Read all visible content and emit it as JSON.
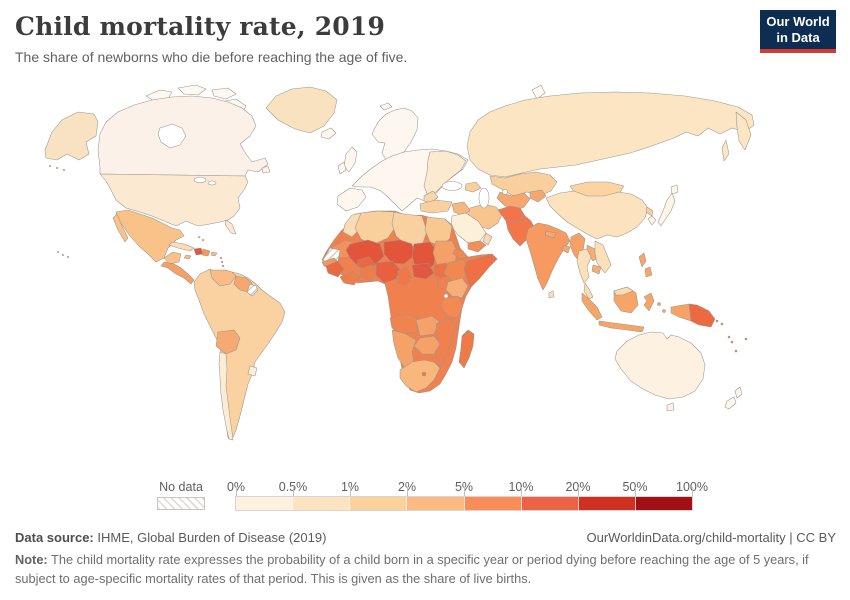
{
  "header": {
    "title": "Child mortality rate, 2019",
    "subtitle": "The share of newborns who die before reaching the age of five."
  },
  "logo": {
    "line1": "Our World",
    "line2": "in Data",
    "navy": "#0d2e52",
    "red": "#d73a33"
  },
  "legend": {
    "no_data_label": "No data",
    "tick_labels": [
      "0%",
      "0.5%",
      "1%",
      "2%",
      "5%",
      "10%",
      "20%",
      "50%",
      "100%"
    ],
    "colors": [
      "#fff1e0",
      "#fde3bf",
      "#fcd29c",
      "#fbba81",
      "#f98c57",
      "#eb6246",
      "#d03022",
      "#a21016"
    ]
  },
  "footer": {
    "source_label": "Data source:",
    "source_text": " IHME, Global Burden of Disease (2019)",
    "link_text": "OurWorldinData.org/child-mortality | CC BY",
    "note_label": "Note:",
    "note_text": " The child mortality rate expresses the probability of a child born in a specific year or period dying before reaching the age of 5 years, if subject to age-specific mortality rates of that period. This is given as the share of live births."
  },
  "chart_data": {
    "type": "choropleth_map",
    "title": "Child mortality rate, 2019",
    "subtitle": "The share of newborns who die before reaching the age of five.",
    "unit": "%",
    "scale": "binned (log-like)",
    "bins": [
      "0%",
      "0.5%",
      "1%",
      "2%",
      "5%",
      "10%",
      "20%",
      "50%",
      "100%"
    ],
    "bin_colors": [
      "#fff1e0",
      "#fde3bf",
      "#fcd29c",
      "#fbba81",
      "#f98c57",
      "#eb6246",
      "#d03022",
      "#a21016"
    ],
    "no_data": {
      "label": "No data",
      "regions": [
        "Western Sahara",
        "French Guiana"
      ]
    },
    "regional_shading_read_from_map": {
      "10-20% (darkest shown)": [
        "Mali",
        "Niger",
        "Chad",
        "Central African Republic",
        "Nigeria",
        "Guinea",
        "Sierra Leone",
        "Haiti"
      ],
      "5-10%": [
        "Most of sub-Saharan Africa",
        "Somalia",
        "Afghanistan",
        "Pakistan",
        "Papua New Guinea",
        "Madagascar",
        "Yemen",
        "Cameroon",
        "Angola",
        "Mozambique"
      ],
      "2-5%": [
        "India",
        "Myanmar",
        "Bolivia",
        "Guatemala/Honduras",
        "Sudan",
        "Ethiopia",
        "Kenya",
        "South Africa",
        "Turkmenistan/Uzbekistan",
        "Indonesia",
        "Philippines",
        "Laos",
        "Senegal",
        "Mauritania"
      ],
      "1-2%": [
        "Mexico",
        "most of South America",
        "North Africa",
        "Iran",
        "Iraq",
        "Turkey",
        "Kazakhstan",
        "Mongolia",
        "Egypt",
        "Dominican Republic"
      ],
      "0.5-1%": [
        "United States",
        "Russia",
        "China",
        "Eastern Europe",
        "Thailand",
        "Vietnam",
        "Saudi Arabia",
        "Chile",
        "Greenland"
      ],
      "<0.5%": [
        "Canada",
        "Western & Northern Europe",
        "Japan",
        "South Korea",
        "Australia",
        "New Zealand"
      ]
    }
  },
  "map": {
    "colors": {
      "ocean": "#ffffff",
      "border": "#9c958f",
      "arctic": "#fdf9f2",
      "canada": "#fcf1e8",
      "alaska": "#f9e2c1",
      "greenland": "#f9e2bf",
      "usa": "#fbe9d2",
      "mexico": "#f9c289",
      "central_america": "#f5a066",
      "cuba": "#fbdcb4",
      "haiti": "#e4583a",
      "dominican_republic": "#f5975f",
      "caribbean": "#f8bc83",
      "south_america": "#fad1a1",
      "venezuela": "#f8bc84",
      "guyana": "#f5a76d",
      "bolivia": "#f5a973",
      "chile": "#fcecd6",
      "uruguay": "#fceedd",
      "europe": "#fdf7ef",
      "eastern_europe": "#fbe9d0",
      "balkans": "#f9d6ab",
      "russia": "#fbe5c2",
      "kazakhstan": "#f8cf9d",
      "central_asia": "#f5a76f",
      "mongolia": "#fbd4a1",
      "china": "#fce3bd",
      "north_korea": "#f9cf9f",
      "japan": "#fdf5e8",
      "afghanistan": "#f1744c",
      "pakistan": "#f3764a",
      "india": "#f79a61",
      "himalaya": "#f6a76b",
      "myanmar": "#f5a066",
      "thailand": "#fbe1ba",
      "indochina": "#f6ac72",
      "malaysia": "#fbdcb1",
      "indonesia": "#f7a567",
      "philippines": "#f6a668",
      "west_papua": "#f7a366",
      "papua_new_guinea": "#ec6a41",
      "pacific": "#ef8350",
      "turkey": "#fad0a0",
      "iran": "#f9c48d",
      "iraq_syria": "#f7b67e",
      "saudi_arabia": "#fdf0d8",
      "yemen": "#f28f58",
      "oman": "#fbd8ad",
      "morocco": "#fbdcb6",
      "algeria": "#f9cf9c",
      "libya": "#f9d0a0",
      "egypt": "#f8c890",
      "mauritania": "#f2915a",
      "senegal": "#f3955e",
      "sahel": "#e2553a",
      "sudan": "#f4a066",
      "west_africa": "#e96a42",
      "ghana_coast": "#ee7d4c",
      "nigeria": "#e8603f",
      "cameroon": "#ef7748",
      "car": "#e15840",
      "south_sudan": "#ed7347",
      "ethiopia": "#f08850",
      "somalia": "#ef7044",
      "kenya": "#f6b077",
      "central_africa": "#f0814e",
      "east_africa": "#f28a52",
      "angola": "#f0834f",
      "southern_africa": "#f5a269",
      "south_africa": "#f8b77d",
      "madagascar": "#ee7a47",
      "australia": "#fdf2e1",
      "new_zealand": "#fdf7ed"
    }
  }
}
